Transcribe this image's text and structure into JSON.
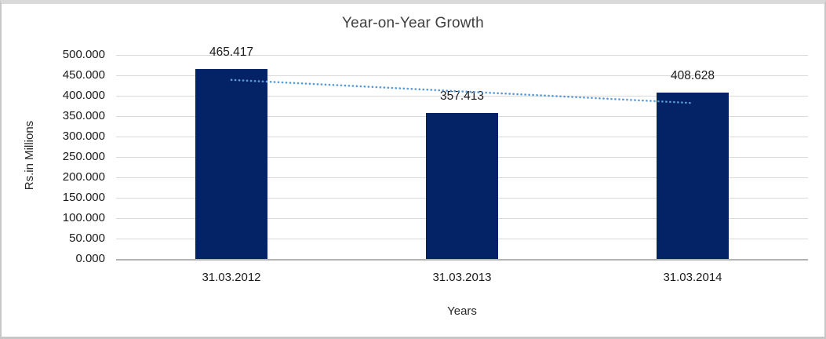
{
  "chart_data": {
    "type": "bar",
    "title": "Year-on-Year Growth",
    "xlabel": "Years",
    "ylabel": "Rs.in Millions",
    "categories": [
      "31.03.2012",
      "31.03.2013",
      "31.03.2014"
    ],
    "values": [
      465.417,
      357.413,
      408.628
    ],
    "data_labels": [
      "465.417",
      "357.413",
      "408.628"
    ],
    "ylim": [
      0,
      500
    ],
    "ytick_step": 50,
    "ytick_labels": [
      "0.000",
      "50.000",
      "100.000",
      "150.000",
      "200.000",
      "250.000",
      "300.000",
      "350.000",
      "400.000",
      "450.000",
      "500.000"
    ],
    "grid": true,
    "legend": "none",
    "trendline": {
      "type": "linear",
      "style": "dotted"
    },
    "colors": {
      "bar": "#042366",
      "trendline": "#5b9bd5",
      "gridline": "#d9d9d9",
      "axis_line": "#b3b3b3",
      "text": "#1a1a1a",
      "title": "#3f3f3f",
      "frame_border": "#c7c7c7"
    }
  }
}
